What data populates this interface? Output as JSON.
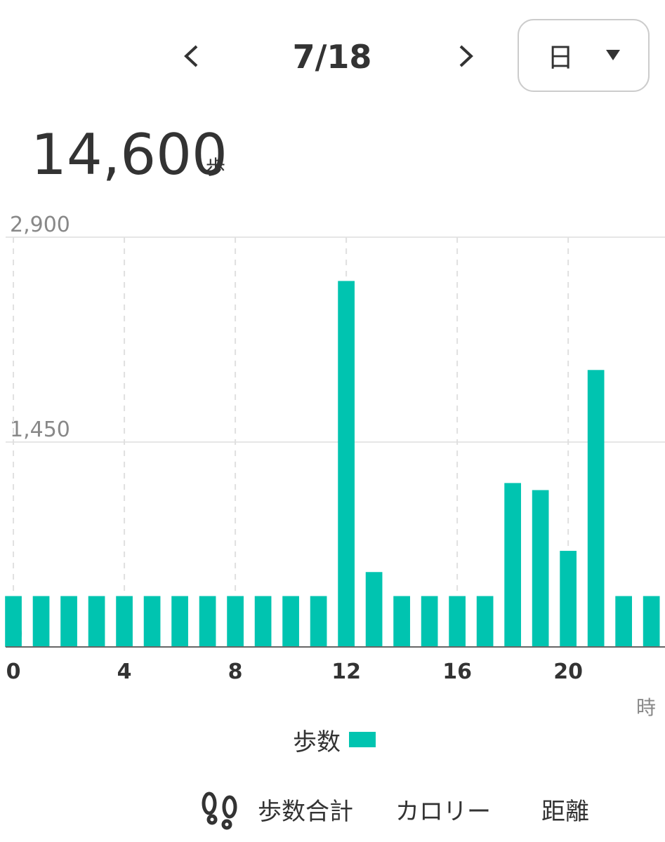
{
  "header": {
    "date": "7/18",
    "period": "日"
  },
  "summary": {
    "total": "14,600",
    "unit": "歩"
  },
  "chart_data": {
    "type": "bar",
    "x": [
      0,
      1,
      2,
      3,
      4,
      5,
      6,
      7,
      8,
      9,
      10,
      11,
      12,
      13,
      14,
      15,
      16,
      17,
      18,
      19,
      20,
      21,
      22,
      23
    ],
    "series": [
      {
        "name": "歩数",
        "color": "#00c4b0",
        "values": [
          360,
          360,
          360,
          360,
          360,
          360,
          360,
          360,
          360,
          360,
          360,
          360,
          2590,
          530,
          360,
          360,
          360,
          360,
          1160,
          1110,
          680,
          1960,
          360,
          360
        ]
      }
    ],
    "xlim": [
      -0.28,
      23.49
    ],
    "xticks": [
      0,
      4,
      8,
      12,
      16,
      20
    ],
    "ylim": [
      0,
      2900
    ],
    "yticks": [
      0,
      {
        "value": 1450,
        "label": "1,450"
      },
      {
        "value": 2900,
        "label": "2,900"
      }
    ],
    "x_unit": "時",
    "grid": true
  },
  "tabs": [
    "歩数合計",
    "カロリー",
    "距離"
  ]
}
